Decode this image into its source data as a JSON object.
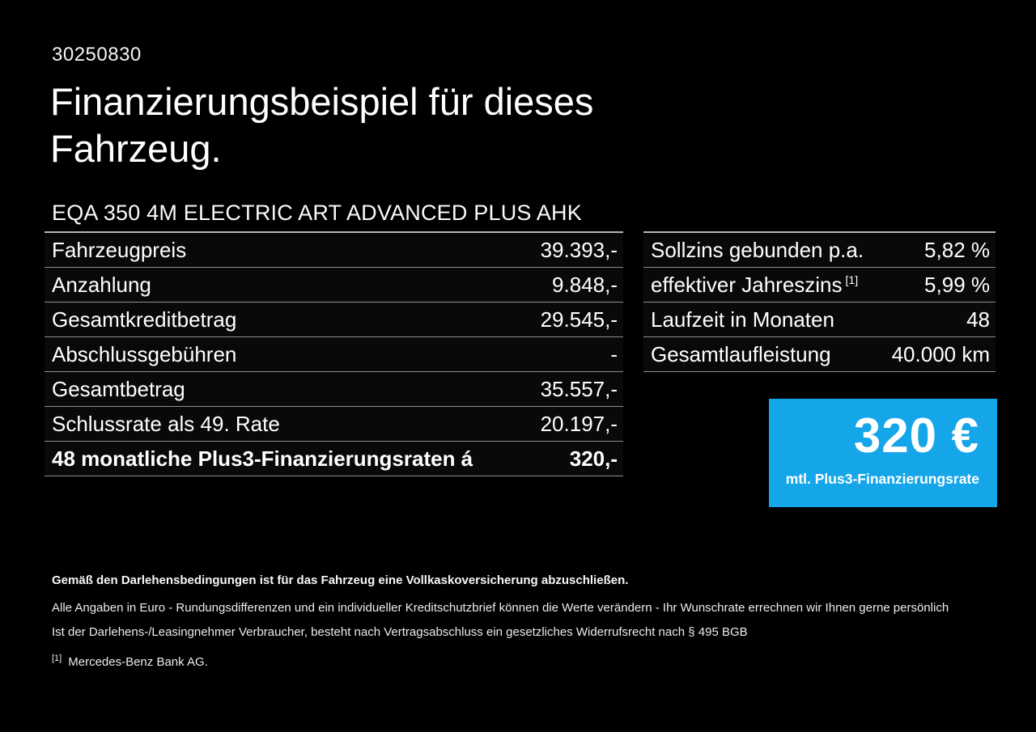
{
  "page": {
    "background": "#000000",
    "accent_blue": "#15a6e9"
  },
  "header": {
    "doc_number": "30250830",
    "title": "Finanzierungsbeispiel für dieses Fahrzeug.",
    "vehicle_model": "EQA 350 4M ELECTRIC ART ADVANCED PLUS AHK"
  },
  "finance_table": {
    "rows": [
      {
        "label": "Fahrzeugpreis",
        "value": "39.393,-",
        "bold": false
      },
      {
        "label": "Anzahlung",
        "value": "9.848,-",
        "bold": false
      },
      {
        "label": "Gesamtkreditbetrag",
        "value": "29.545,-",
        "bold": false
      },
      {
        "label": "Abschlussgebühren",
        "value": "-",
        "bold": false
      },
      {
        "label": "Gesamtbetrag",
        "value": "35.557,-",
        "bold": false
      },
      {
        "label": "Schlussrate als 49. Rate",
        "value": "20.197,-",
        "bold": false
      },
      {
        "label": "48 monatliche Plus3-Finanzierungsraten á",
        "value": "320,-",
        "bold": true
      }
    ]
  },
  "conditions_table": {
    "rows": [
      {
        "label": "Sollzins gebunden p.a.",
        "label_sup": "",
        "value": "5,82 %",
        "bold": false
      },
      {
        "label": "effektiver Jahreszins",
        "label_sup": "[1]",
        "value": "5,99 %",
        "bold": false
      },
      {
        "label": "Laufzeit in Monaten",
        "label_sup": "",
        "value": "48",
        "bold": false
      },
      {
        "label": "Gesamtlaufleistung",
        "label_sup": "",
        "value": "40.000 km",
        "bold": false
      }
    ]
  },
  "rate_box": {
    "amount": "320 €",
    "caption": "mtl. Plus3-Finanzierungsrate"
  },
  "footnotes": {
    "line1": "Gemäß den Darlehensbedingungen ist für das Fahrzeug eine Vollkaskoversicherung abzuschließen.",
    "line2": "Alle Angaben in Euro - Rundungsdifferenzen und ein individueller Kreditschutzbrief können die Werte verändern - Ihr Wunschrate errechnen wir Ihnen gerne persönlich",
    "line3": "Ist der Darlehens-/Leasingnehmer Verbraucher, besteht nach Vertragsabschluss ein gesetzliches Widerrufsrecht nach § 495 BGB",
    "ref_marker": "[1]",
    "ref_text": "Mercedes-Benz Bank AG."
  }
}
